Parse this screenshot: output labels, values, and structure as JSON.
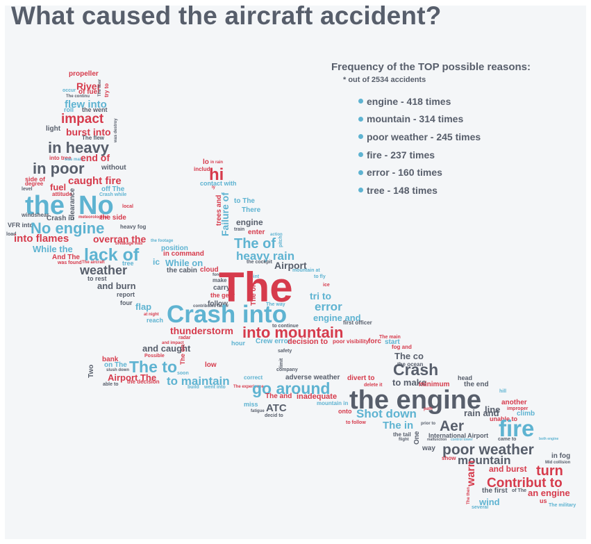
{
  "title": "What caused the aircraft accident?",
  "legend": {
    "heading": "Frequency of the TOP possible reasons:",
    "note": "* out of 2534 accidents",
    "items": [
      "engine - 418 times",
      "mountain - 314 times",
      "poor weather - 245 times",
      "fire - 237 times",
      "error - 160 times",
      "tree - 148 times"
    ]
  },
  "colors": {
    "red": "#d63b4c",
    "blue": "#5eb3d1",
    "gray": "#575e6b",
    "background": "#f4f6f8"
  },
  "words": [
    "propeller",
    "River",
    "of fuel",
    "occur",
    "The continu",
    "The liner",
    "try to",
    "flew into",
    "roll",
    "the went",
    "impact",
    "burst into",
    "light",
    "The flew",
    "was destroy",
    "in heavy",
    "into tree",
    "was main",
    "end of",
    "in poor",
    "without",
    "caught fire",
    "side of",
    "degree",
    "fuel",
    "level",
    "attitude",
    "off The",
    "Crash while",
    "the",
    "No",
    "clearance",
    "windshear",
    "Crash in",
    "meteorological",
    "the side",
    "local",
    "VFR into",
    "No engine",
    "heavy fog",
    "load",
    "into flames",
    "overran the",
    "breakage was",
    "the footage",
    "While the",
    "lack of",
    "position",
    "in command",
    "And The",
    "was found",
    "The aircraft",
    "tree",
    "ic",
    "While on",
    "weather",
    "the cabin",
    "cloud",
    "to rest",
    "forest",
    "make an",
    "and burn",
    "carry",
    "report",
    "the gear",
    "four",
    "follow",
    "contributed factor",
    "flap",
    "at night",
    "reach",
    "lo",
    "in rain",
    "includ",
    "hi",
    "ly",
    "contact with",
    "trees and",
    "Failure of",
    "to The",
    "There",
    "engine",
    "train",
    "enter",
    "action",
    "The of",
    "pitch",
    "heavy rain",
    "the cockpit",
    "Airport",
    "mountain at",
    "point",
    "to fly",
    "ice",
    "tri to",
    "error",
    "The off",
    "The way",
    "engine and",
    "first officer",
    "to continue",
    "The",
    "Crash into",
    "thunderstorm",
    "into mountain",
    "radar",
    "and impact",
    "hour",
    "Crew error",
    "decision to",
    "poor visibility",
    "forc",
    "The main",
    "start",
    "bank",
    "Possible",
    "and caught",
    "safety",
    "fog and",
    "on The",
    "slush down",
    "The to",
    "The on",
    "low",
    "The co",
    "company",
    "limit",
    "Two",
    "soon",
    "Crash",
    "the ocean",
    "Airport The",
    "to maintain",
    "correct",
    "the decision",
    "able to",
    "build",
    "went into",
    "The experience",
    "adverse weather",
    "divert to",
    "to make",
    "head",
    "the end",
    "minimum",
    "delete it",
    "go around",
    "The and",
    "inadequate",
    "the engine",
    "hill",
    "another",
    "improper",
    "mountain in",
    "onto",
    "miss",
    "fatigue",
    "ATC",
    "decid to",
    "path",
    "line",
    "climb",
    "unable to",
    "Shot down",
    "rain and",
    "to follow",
    "The in",
    "prior to",
    "Aer",
    "fire",
    "the tail",
    "International Airport",
    "One",
    "flight",
    "malfunction",
    "control tower",
    "came to",
    "way",
    "poor weather",
    "both engine",
    "show",
    "mountain",
    "in fog",
    "Mid collision",
    "warn",
    "and burst",
    "turn",
    "Contribut to",
    "The then",
    "the first",
    "of The",
    "an engine",
    "wind",
    "us",
    "several",
    "The military"
  ]
}
